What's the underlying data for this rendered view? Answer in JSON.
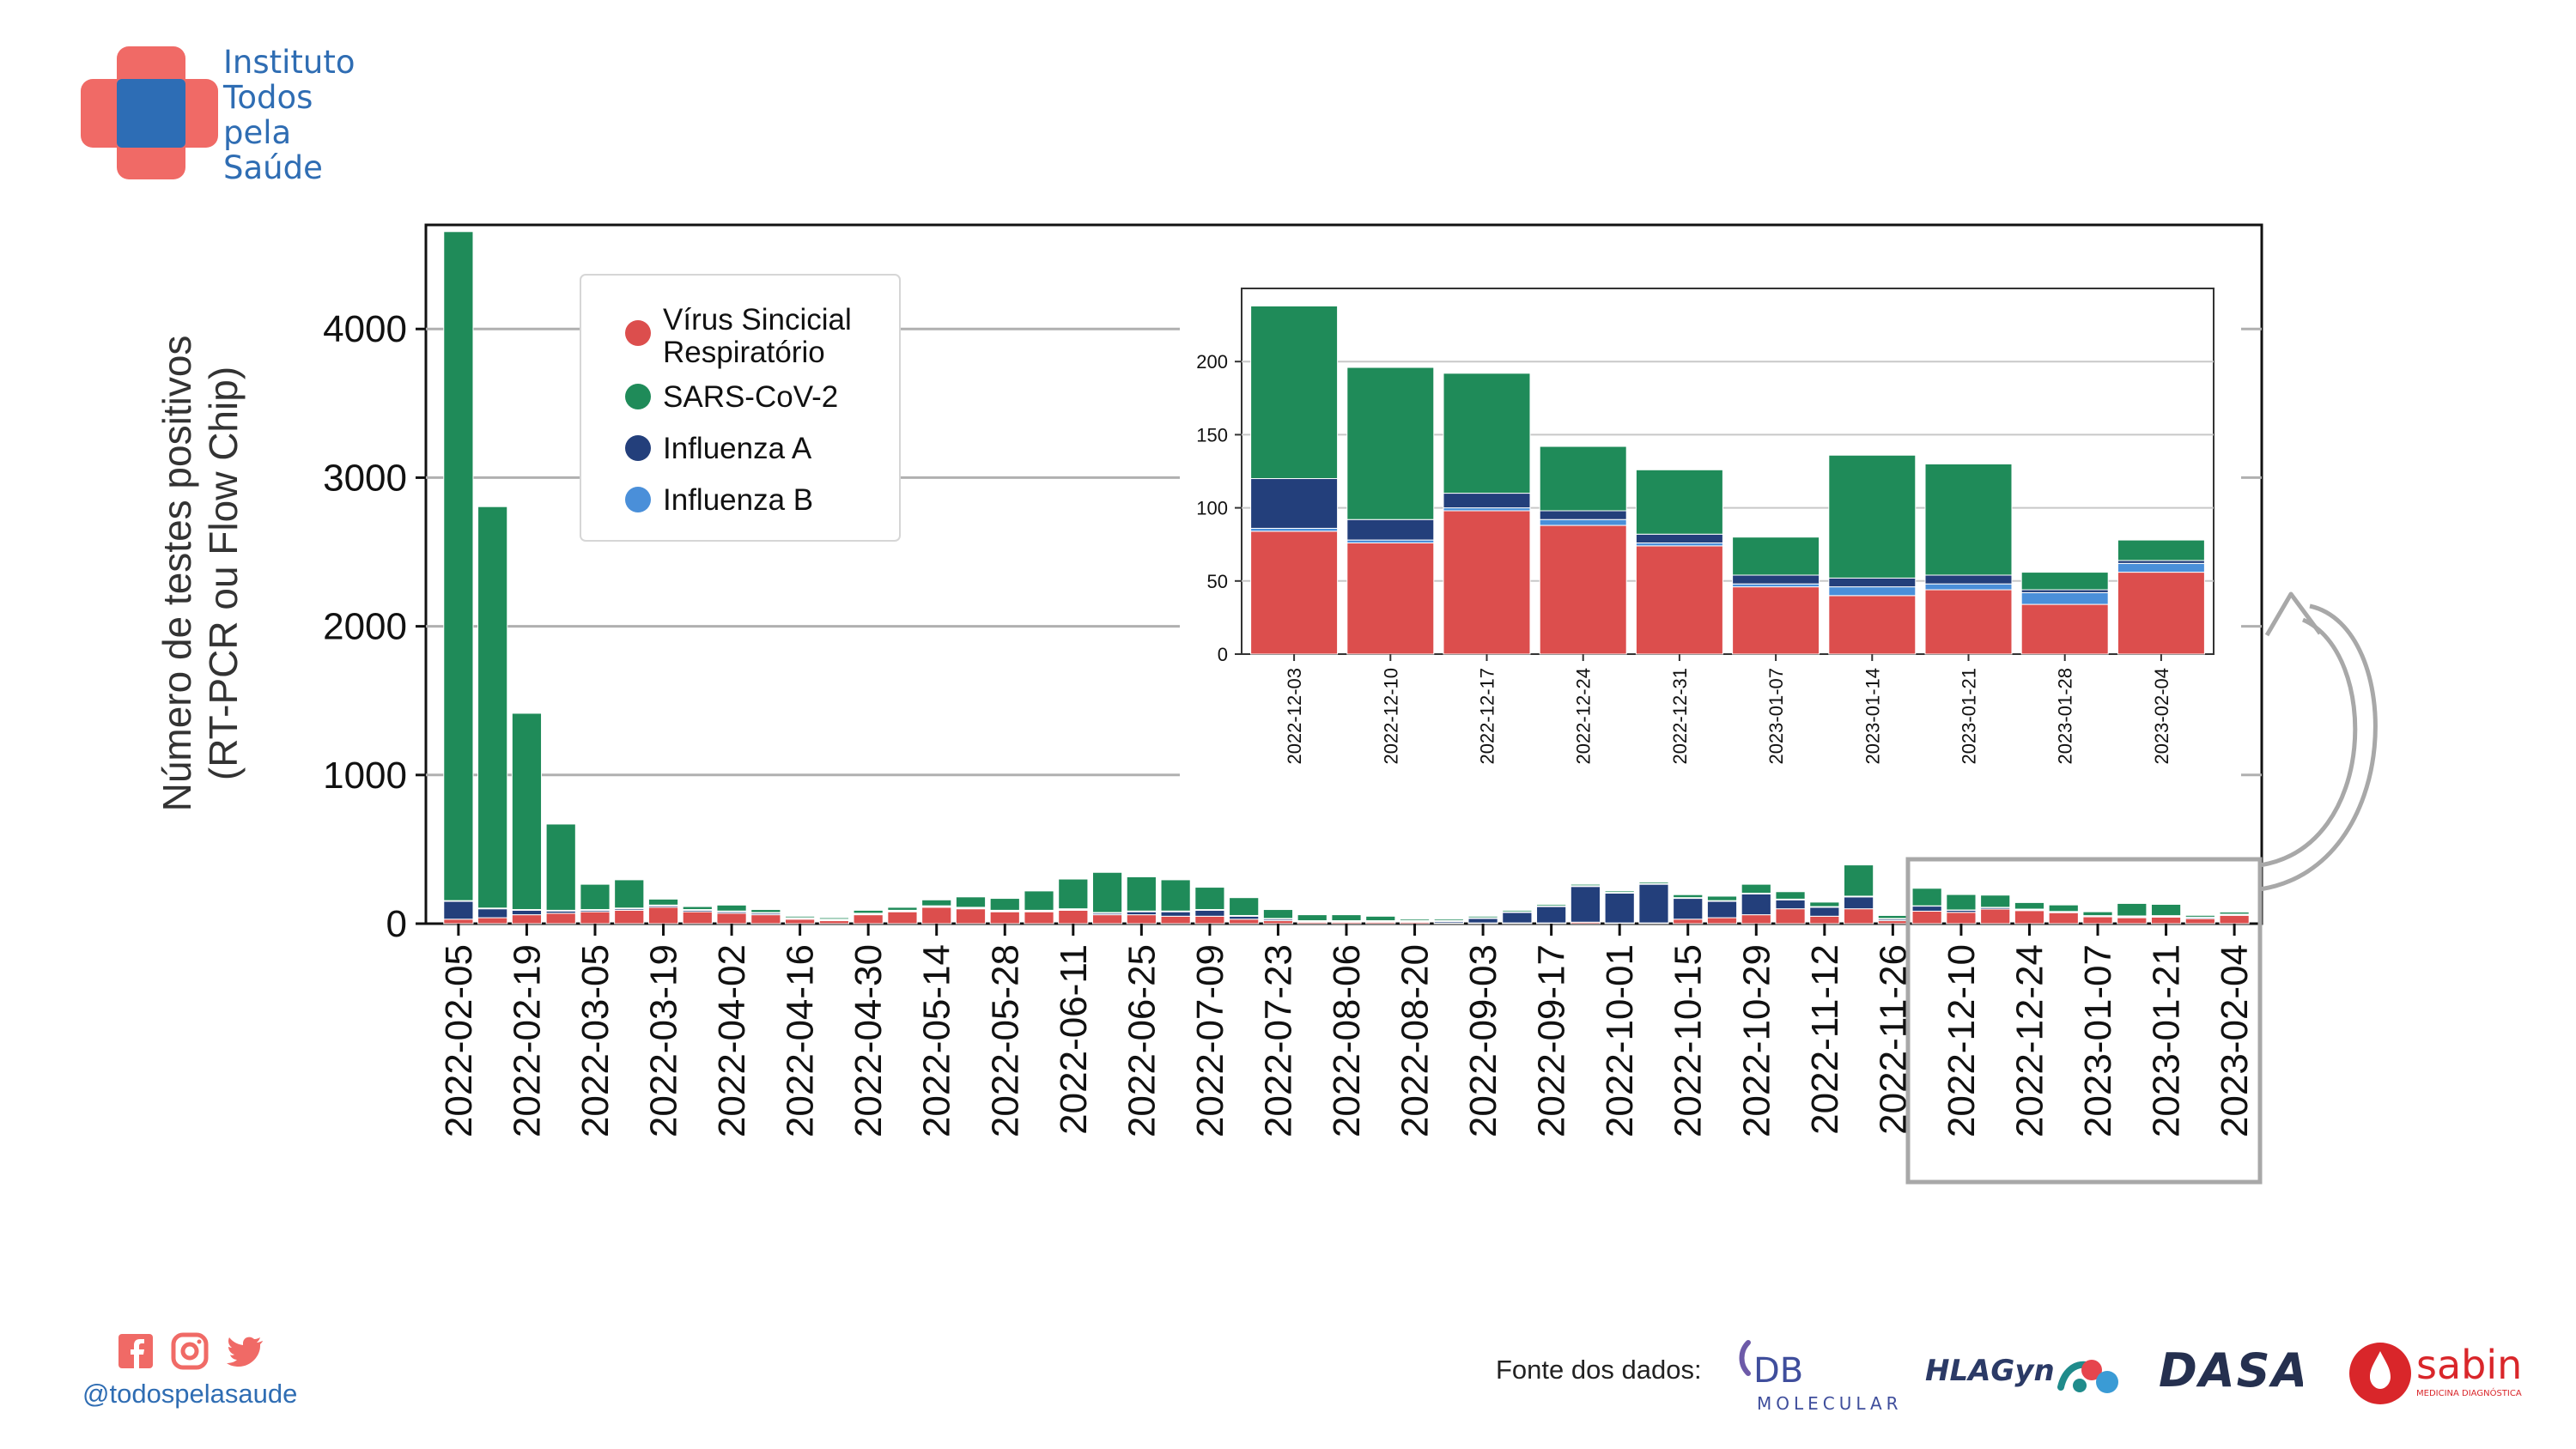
{
  "org": {
    "name_lines": [
      "Instituto",
      "Todos",
      "pela",
      "Saúde"
    ],
    "handle": "@todospelasaude",
    "colors": {
      "cross": "#f06a66",
      "center": "#2d6db5",
      "text": "#2f6db3"
    }
  },
  "social_icons": [
    "facebook-icon",
    "instagram-icon",
    "twitter-icon"
  ],
  "footer": {
    "source_label": "Fonte dos dados:",
    "brands": [
      {
        "name": "DB Molecular",
        "line1": "DB",
        "line2": "MOLECULAR"
      },
      {
        "name": "HLAGyn",
        "text": "HLAGyn"
      },
      {
        "name": "DASA",
        "text": "DASA"
      },
      {
        "name": "sabin",
        "text": "sabin",
        "subtitle": "MEDICINA DIAGNÓSTICA"
      }
    ]
  },
  "colors": {
    "rsv": "#dc4e4d",
    "sars": "#1f8b59",
    "fluA": "#233f7b",
    "fluB": "#4a8fd9",
    "grid": "#b0b0b0",
    "highlight": "#a8a8a8"
  },
  "chart_data": [
    {
      "type": "bar",
      "stacked": true,
      "title": "",
      "ylabel_lines": [
        "Número de testes positivos",
        "(RT-PCR ou Flow Chip)"
      ],
      "ylim": [
        0,
        4700
      ],
      "yticks": [
        0,
        1000,
        2000,
        3000,
        4000
      ],
      "grid": "horizontal",
      "legend_position": "upper-left",
      "x_tick_labels": [
        "2022-02-05",
        "2022-02-19",
        "2022-03-05",
        "2022-03-19",
        "2022-04-02",
        "2022-04-16",
        "2022-04-30",
        "2022-05-14",
        "2022-05-28",
        "2022-06-11",
        "2022-06-25",
        "2022-07-09",
        "2022-07-23",
        "2022-08-06",
        "2022-08-20",
        "2022-09-03",
        "2022-09-17",
        "2022-10-01",
        "2022-10-15",
        "2022-10-29",
        "2022-11-12",
        "2022-11-26",
        "2022-12-10",
        "2022-12-24",
        "2023-01-07",
        "2023-01-21",
        "2023-02-04"
      ],
      "categories": [
        "2022-02-05",
        "2022-02-12",
        "2022-02-19",
        "2022-02-26",
        "2022-03-05",
        "2022-03-12",
        "2022-03-19",
        "2022-03-26",
        "2022-04-02",
        "2022-04-09",
        "2022-04-16",
        "2022-04-23",
        "2022-04-30",
        "2022-05-07",
        "2022-05-14",
        "2022-05-21",
        "2022-05-28",
        "2022-06-04",
        "2022-06-11",
        "2022-06-18",
        "2022-06-25",
        "2022-07-02",
        "2022-07-09",
        "2022-07-16",
        "2022-07-23",
        "2022-07-30",
        "2022-08-06",
        "2022-08-13",
        "2022-08-20",
        "2022-08-27",
        "2022-09-03",
        "2022-09-10",
        "2022-09-17",
        "2022-09-24",
        "2022-10-01",
        "2022-10-08",
        "2022-10-15",
        "2022-10-22",
        "2022-10-29",
        "2022-11-05",
        "2022-11-12",
        "2022-11-19",
        "2022-11-26",
        "2022-12-03",
        "2022-12-10",
        "2022-12-17",
        "2022-12-24",
        "2022-12-31",
        "2023-01-07",
        "2023-01-14",
        "2023-01-21",
        "2023-01-28",
        "2023-02-04"
      ],
      "series": [
        {
          "name": "Vírus Sincicial Respiratório",
          "key": "rsv",
          "values": [
            30,
            40,
            60,
            70,
            80,
            90,
            110,
            80,
            70,
            60,
            30,
            20,
            60,
            80,
            110,
            100,
            80,
            80,
            90,
            60,
            60,
            50,
            50,
            30,
            20,
            10,
            10,
            10,
            10,
            5,
            5,
            5,
            5,
            10,
            5,
            5,
            30,
            40,
            60,
            100,
            50,
            100,
            20,
            84,
            76,
            98,
            88,
            74,
            46,
            40,
            44,
            34,
            56
          ]
        },
        {
          "name": "Influenza A",
          "key": "fluA",
          "values": [
            120,
            60,
            30,
            15,
            10,
            10,
            10,
            10,
            10,
            10,
            5,
            5,
            5,
            5,
            5,
            5,
            5,
            5,
            5,
            10,
            20,
            30,
            40,
            20,
            10,
            5,
            5,
            5,
            5,
            10,
            30,
            70,
            110,
            240,
            200,
            260,
            140,
            110,
            140,
            60,
            60,
            80,
            10,
            34,
            14,
            10,
            6,
            6,
            6,
            6,
            6,
            2,
            2
          ]
        },
        {
          "name": "Influenza B",
          "key": "fluB",
          "values": [
            5,
            5,
            5,
            5,
            5,
            5,
            5,
            5,
            5,
            5,
            5,
            5,
            5,
            5,
            5,
            5,
            5,
            5,
            5,
            5,
            5,
            5,
            5,
            5,
            5,
            5,
            5,
            5,
            5,
            5,
            5,
            5,
            5,
            5,
            5,
            5,
            5,
            5,
            5,
            5,
            5,
            5,
            5,
            2,
            2,
            2,
            4,
            2,
            2,
            6,
            4,
            8,
            6
          ]
        },
        {
          "name": "SARS-CoV-2",
          "key": "sars",
          "values": [
            4500,
            2700,
            1320,
            580,
            170,
            190,
            40,
            20,
            40,
            20,
            10,
            10,
            20,
            20,
            40,
            70,
            80,
            130,
            200,
            270,
            230,
            210,
            150,
            120,
            60,
            40,
            40,
            30,
            10,
            10,
            10,
            10,
            10,
            10,
            10,
            10,
            20,
            30,
            60,
            50,
            30,
            210,
            20,
            118,
            104,
            82,
            44,
            44,
            26,
            84,
            76,
            12,
            14
          ]
        }
      ]
    },
    {
      "type": "bar",
      "stacked": true,
      "title": "",
      "ylim": [
        0,
        250
      ],
      "yticks": [
        0,
        50,
        100,
        150,
        200
      ],
      "grid": "horizontal",
      "categories": [
        "2022-12-03",
        "2022-12-10",
        "2022-12-17",
        "2022-12-24",
        "2022-12-31",
        "2023-01-07",
        "2023-01-14",
        "2023-01-21",
        "2023-01-28",
        "2023-02-04"
      ],
      "series": [
        {
          "name": "Vírus Sincicial Respiratório",
          "key": "rsv",
          "values": [
            84,
            76,
            98,
            88,
            74,
            46,
            40,
            44,
            34,
            56
          ]
        },
        {
          "name": "Influenza B",
          "key": "fluB",
          "values": [
            2,
            2,
            2,
            4,
            2,
            2,
            6,
            4,
            8,
            6
          ]
        },
        {
          "name": "Influenza A",
          "key": "fluA",
          "values": [
            34,
            14,
            10,
            6,
            6,
            6,
            6,
            6,
            2,
            2
          ]
        },
        {
          "name": "SARS-CoV-2",
          "key": "sars",
          "values": [
            118,
            104,
            82,
            44,
            44,
            26,
            84,
            76,
            12,
            14
          ]
        }
      ]
    }
  ]
}
